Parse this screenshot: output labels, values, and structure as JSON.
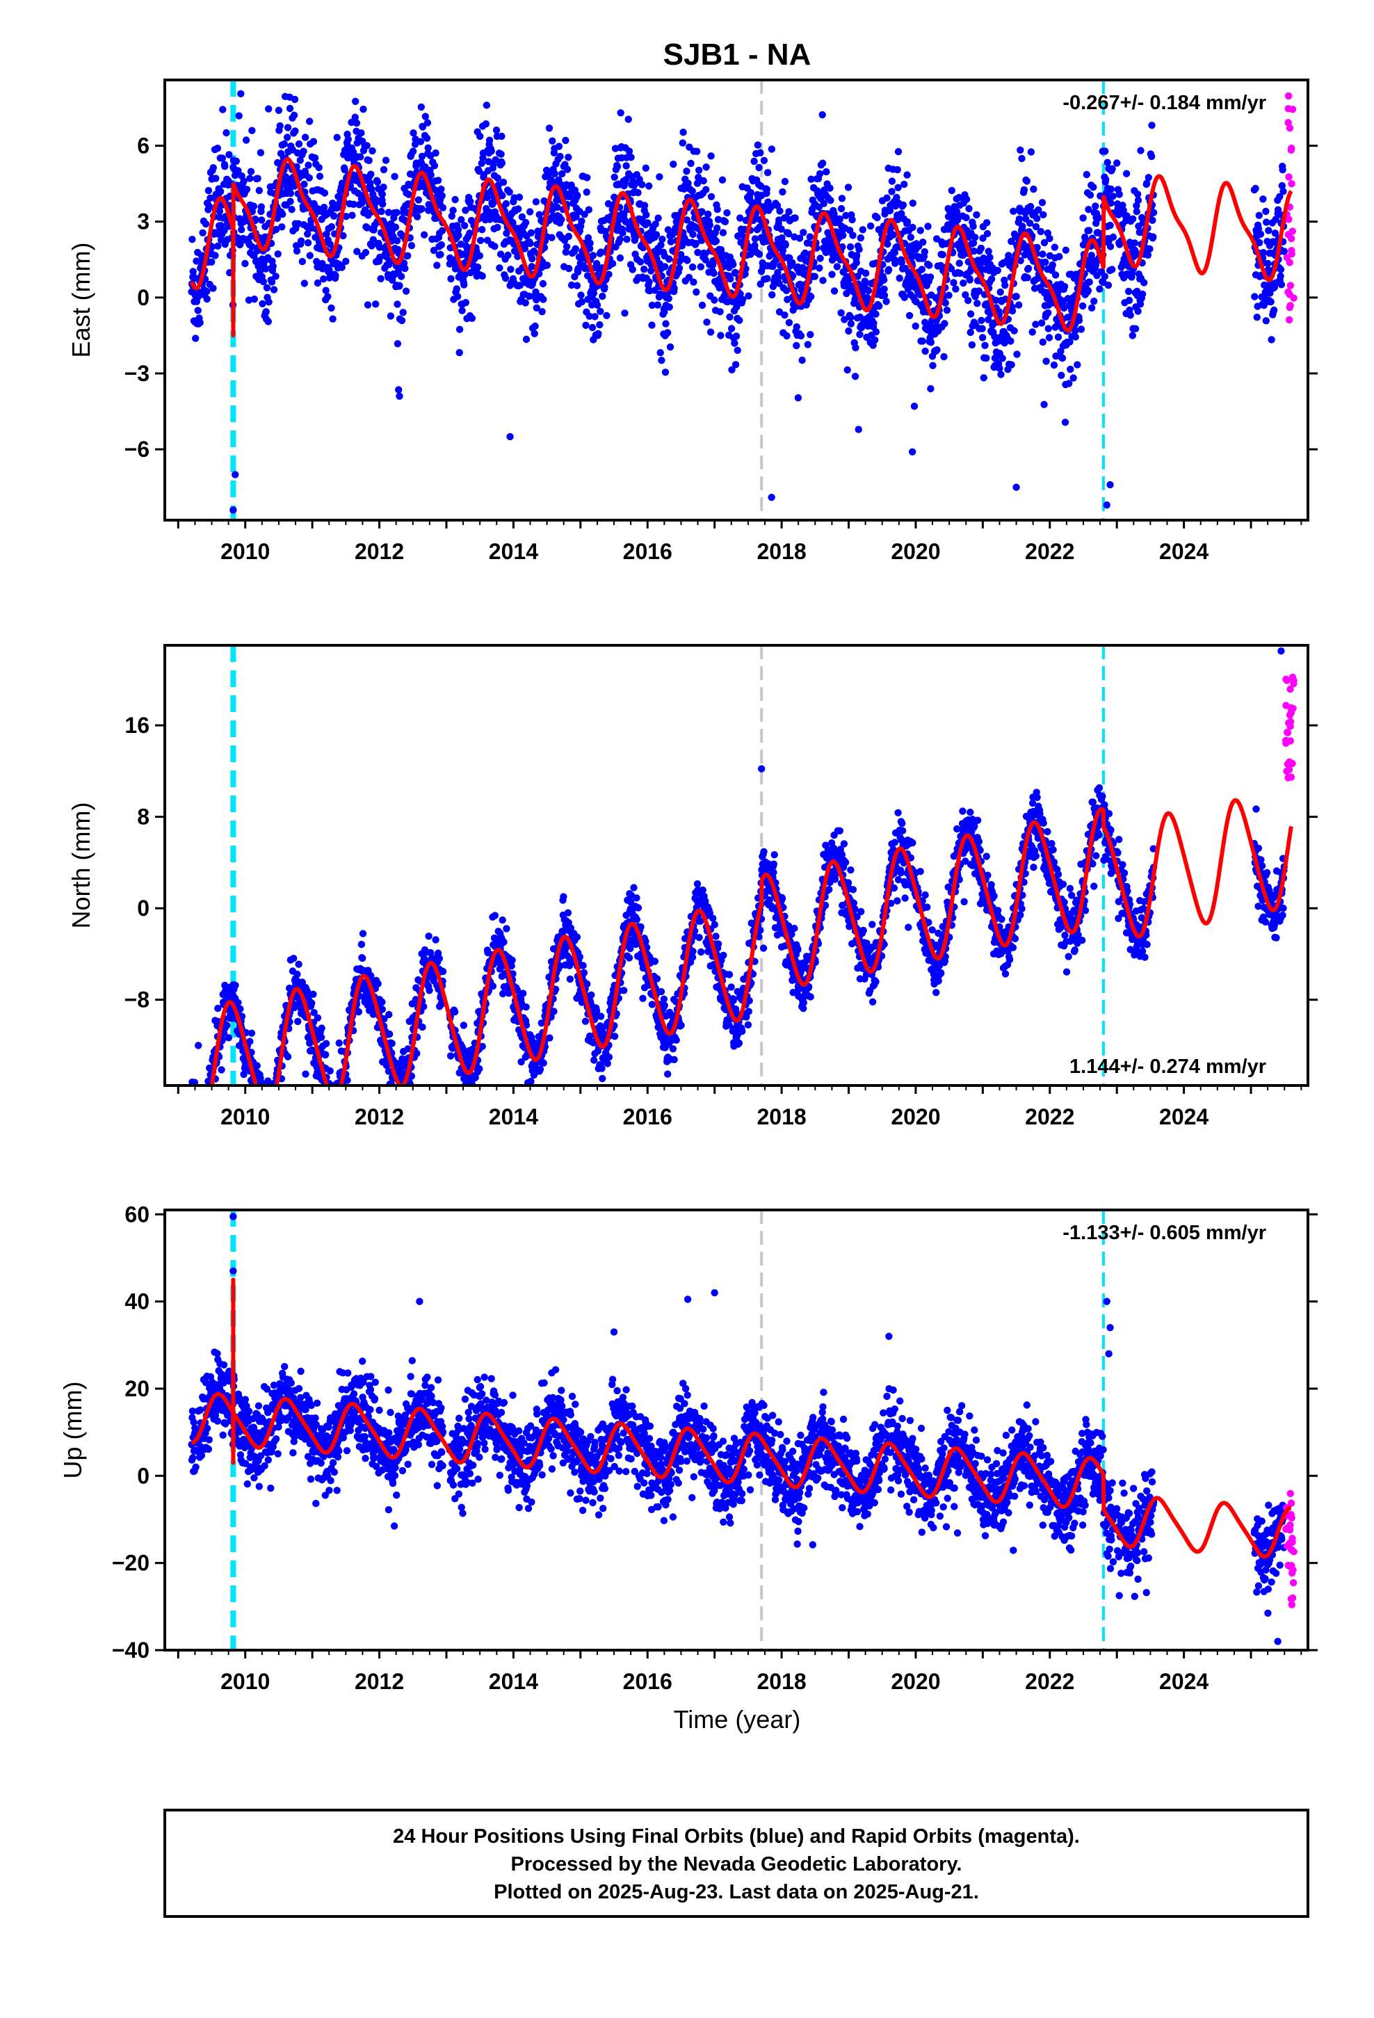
{
  "title": "SJB1 - NA",
  "xlabel": "Time (year)",
  "colors": {
    "final_points": "#0000ff",
    "rapid_points": "#ff00ff",
    "model_line": "#ff0000",
    "equipment_change": "#00e5ff",
    "other_event": "#c8c8c8",
    "frame": "#000000"
  },
  "chart_data": [
    {
      "type": "scatter",
      "ylabel": "East (mm)",
      "xlim": [
        2008.8,
        2025.85
      ],
      "ylim": [
        -8.8,
        8.6
      ],
      "x_ticks": [
        2010,
        2012,
        2014,
        2016,
        2018,
        2020,
        2022,
        2024
      ],
      "y_ticks": [
        -6,
        -3,
        0,
        3,
        6
      ],
      "rate": {
        "text": "-0.267+/- 0.184 mm/yr",
        "position": "top-right"
      },
      "vlines": [
        {
          "x": 2009.82,
          "color": "#00e5ff",
          "style": "dashed-thick"
        },
        {
          "x": 2017.7,
          "color": "#c8c8c8",
          "style": "dashed"
        },
        {
          "x": 2022.8,
          "color": "#00e5ff",
          "style": "dashed"
        }
      ],
      "model": {
        "offset": 0.0,
        "trend": -0.267,
        "annual_amp": 1.6,
        "annual_phase": 0.55,
        "semi_amp": 0.5,
        "steps": [
          {
            "x": 2009.82,
            "dy": 1.8
          },
          {
            "x": 2022.8,
            "dy": 2.8
          }
        ],
        "spike": {
          "x": 2009.82,
          "peak": 2.8,
          "trough": -1.5
        }
      },
      "series": [
        {
          "name": "Final Orbits",
          "color": "#0000ff",
          "scatter_sd": 1.25,
          "data_spans": [
            [
              2009.2,
              2012.95
            ],
            [
              2013.05,
              2022.95
            ],
            [
              2023.0,
              2023.55
            ],
            [
              2025.05,
              2025.5
            ]
          ],
          "outliers": [
            [
              2009.82,
              -8.4
            ],
            [
              2009.85,
              -7.0
            ],
            [
              2010.1,
              6.6
            ],
            [
              2010.5,
              7.4
            ],
            [
              2013.6,
              7.6
            ],
            [
              2015.6,
              7.3
            ],
            [
              2017.85,
              -7.9
            ],
            [
              2021.5,
              -7.5
            ],
            [
              2022.85,
              -8.2
            ],
            [
              2022.9,
              -7.4
            ],
            [
              2013.95,
              -5.5
            ],
            [
              2019.95,
              -6.1
            ],
            [
              2012.3,
              -3.9
            ]
          ]
        },
        {
          "name": "Rapid Orbits",
          "color": "#ff00ff",
          "x_range": [
            2025.52,
            2025.64
          ],
          "y_range": [
            -1.3,
            8.2
          ]
        }
      ]
    },
    {
      "type": "scatter",
      "ylabel": "North (mm)",
      "xlim": [
        2008.8,
        2025.85
      ],
      "ylim": [
        -15.5,
        23.0
      ],
      "x_ticks": [
        2010,
        2012,
        2014,
        2016,
        2018,
        2020,
        2022,
        2024
      ],
      "y_ticks": [
        -8,
        0,
        8,
        16
      ],
      "rate": {
        "text": "1.144+/- 0.274 mm/yr",
        "position": "bottom-right"
      },
      "vlines": [
        {
          "x": 2009.82,
          "color": "#00e5ff",
          "style": "dashed-thick"
        },
        {
          "x": 2017.7,
          "color": "#c8c8c8",
          "style": "dashed"
        },
        {
          "x": 2022.8,
          "color": "#00e5ff",
          "style": "dashed"
        }
      ],
      "model": {
        "offset": -4.5,
        "trend": 1.144,
        "annual_amp": 5.0,
        "annual_phase": 0.45,
        "semi_amp": 0.6,
        "steps": [
          {
            "x": 2017.7,
            "dy": 2.0
          },
          {
            "x": 2022.8,
            "dy": -1.5
          }
        ],
        "spike": null
      },
      "series": [
        {
          "name": "Final Orbits",
          "color": "#0000ff",
          "scatter_sd": 1.3,
          "data_spans": [
            [
              2009.2,
              2012.95
            ],
            [
              2013.05,
              2022.95
            ],
            [
              2023.0,
              2023.55
            ],
            [
              2025.05,
              2025.5
            ]
          ],
          "outliers": [
            [
              2010.9,
              -14.5
            ],
            [
              2011.2,
              -14.0
            ],
            [
              2012.3,
              -14.3
            ],
            [
              2016.3,
              -14.5
            ],
            [
              2017.7,
              12.2
            ],
            [
              2025.45,
              22.5
            ],
            [
              2009.3,
              -12.0
            ]
          ]
        },
        {
          "name": "Rapid Orbits",
          "color": "#ff00ff",
          "x_range": [
            2025.52,
            2025.64
          ],
          "y_range": [
            11.3,
            20.8
          ]
        }
      ]
    },
    {
      "type": "scatter",
      "ylabel": "Up (mm)",
      "xlim": [
        2008.8,
        2025.85
      ],
      "ylim": [
        -40.0,
        61.0
      ],
      "x_ticks": [
        2010,
        2012,
        2014,
        2016,
        2018,
        2020,
        2022,
        2024
      ],
      "x_tick_labels": [
        "2010",
        "2012",
        "2014",
        "2016",
        "2018",
        "2020",
        "2022",
        "2024"
      ],
      "y_ticks": [
        -40,
        -20,
        0,
        20,
        40,
        60
      ],
      "rate": {
        "text": "-1.133+/- 0.605 mm/yr",
        "position": "top-right"
      },
      "vlines": [
        {
          "x": 2009.82,
          "color": "#00e5ff",
          "style": "dashed-thick"
        },
        {
          "x": 2017.7,
          "color": "#c8c8c8",
          "style": "dashed"
        },
        {
          "x": 2022.8,
          "color": "#00e5ff",
          "style": "dashed"
        }
      ],
      "model": {
        "offset": 4.0,
        "trend": -1.133,
        "annual_amp": 5.5,
        "annual_phase": 0.6,
        "semi_amp": 1.0,
        "steps": [
          {
            "x": 2022.8,
            "dy": -8.0
          }
        ],
        "spike": {
          "x": 2009.82,
          "peak": 45.0,
          "trough": 3.0
        }
      },
      "series": [
        {
          "name": "Final Orbits",
          "color": "#0000ff",
          "scatter_sd": 4.5,
          "data_spans": [
            [
              2009.2,
              2012.95
            ],
            [
              2013.05,
              2022.95
            ],
            [
              2023.0,
              2023.55
            ],
            [
              2025.05,
              2025.5
            ]
          ],
          "outliers": [
            [
              2009.82,
              59.5
            ],
            [
              2009.82,
              47.0
            ],
            [
              2012.6,
              40.0
            ],
            [
              2016.6,
              40.5
            ],
            [
              2017.0,
              42.0
            ],
            [
              2015.5,
              33.0
            ],
            [
              2019.6,
              32.0
            ],
            [
              2022.85,
              40.0
            ],
            [
              2022.9,
              34.0
            ],
            [
              2022.88,
              28.0
            ],
            [
              2025.4,
              -38.0
            ]
          ]
        },
        {
          "name": "Rapid Orbits",
          "color": "#ff00ff",
          "x_range": [
            2025.52,
            2025.64
          ],
          "y_range": [
            -30.0,
            -4.0
          ]
        }
      ]
    }
  ],
  "footer": {
    "line1": "24 Hour Positions Using Final Orbits (blue) and Rapid Orbits (magenta).",
    "line2": "Processed by the Nevada Geodetic Laboratory.",
    "line3": "Plotted on 2025-Aug-23. Last data on 2025-Aug-21."
  }
}
